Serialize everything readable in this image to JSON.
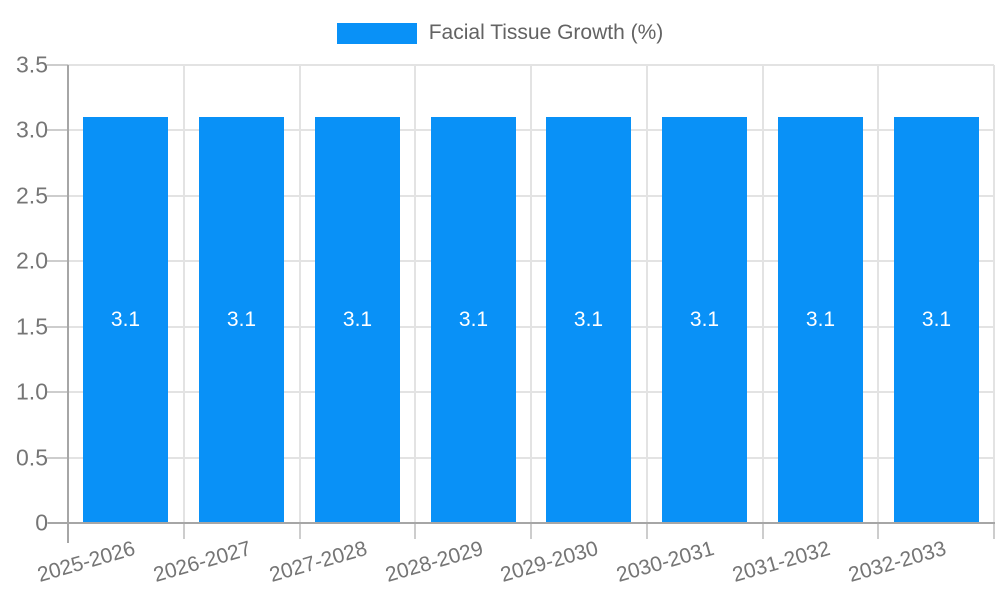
{
  "legend": {
    "label": "Facial Tissue Growth (%)"
  },
  "colors": {
    "bar": "#0991f7",
    "bar_label": "#ffffff",
    "grid": "#e3e3e3",
    "tick": "#cdcdcd",
    "axis": "#a6a6a6",
    "tick_label": "#757575",
    "legend_label": "#636363",
    "background": "#ffffff"
  },
  "chart_data": {
    "type": "bar",
    "title": "",
    "xlabel": "",
    "ylabel": "",
    "legend": [
      "Facial Tissue Growth (%)"
    ],
    "legend_position": "top",
    "grid": true,
    "categories": [
      "2025-2026",
      "2026-2027",
      "2027-2028",
      "2028-2029",
      "2029-2030",
      "2030-2031",
      "2031-2032",
      "2032-2033"
    ],
    "series": [
      {
        "name": "Facial Tissue Growth (%)",
        "values": [
          3.1,
          3.1,
          3.1,
          3.1,
          3.1,
          3.1,
          3.1,
          3.1
        ]
      }
    ],
    "value_labels": [
      "3.1",
      "3.1",
      "3.1",
      "3.1",
      "3.1",
      "3.1",
      "3.1",
      "3.1"
    ],
    "ylim": [
      0,
      3.5
    ],
    "yticks": [
      0,
      0.5,
      1,
      1.5,
      2,
      2.5,
      3,
      3.5
    ],
    "ytick_labels": [
      "0",
      "0.5",
      "1.0",
      "1.5",
      "2.0",
      "2.5",
      "3.0",
      "3.5"
    ],
    "x_label_rotation_deg": -16
  }
}
